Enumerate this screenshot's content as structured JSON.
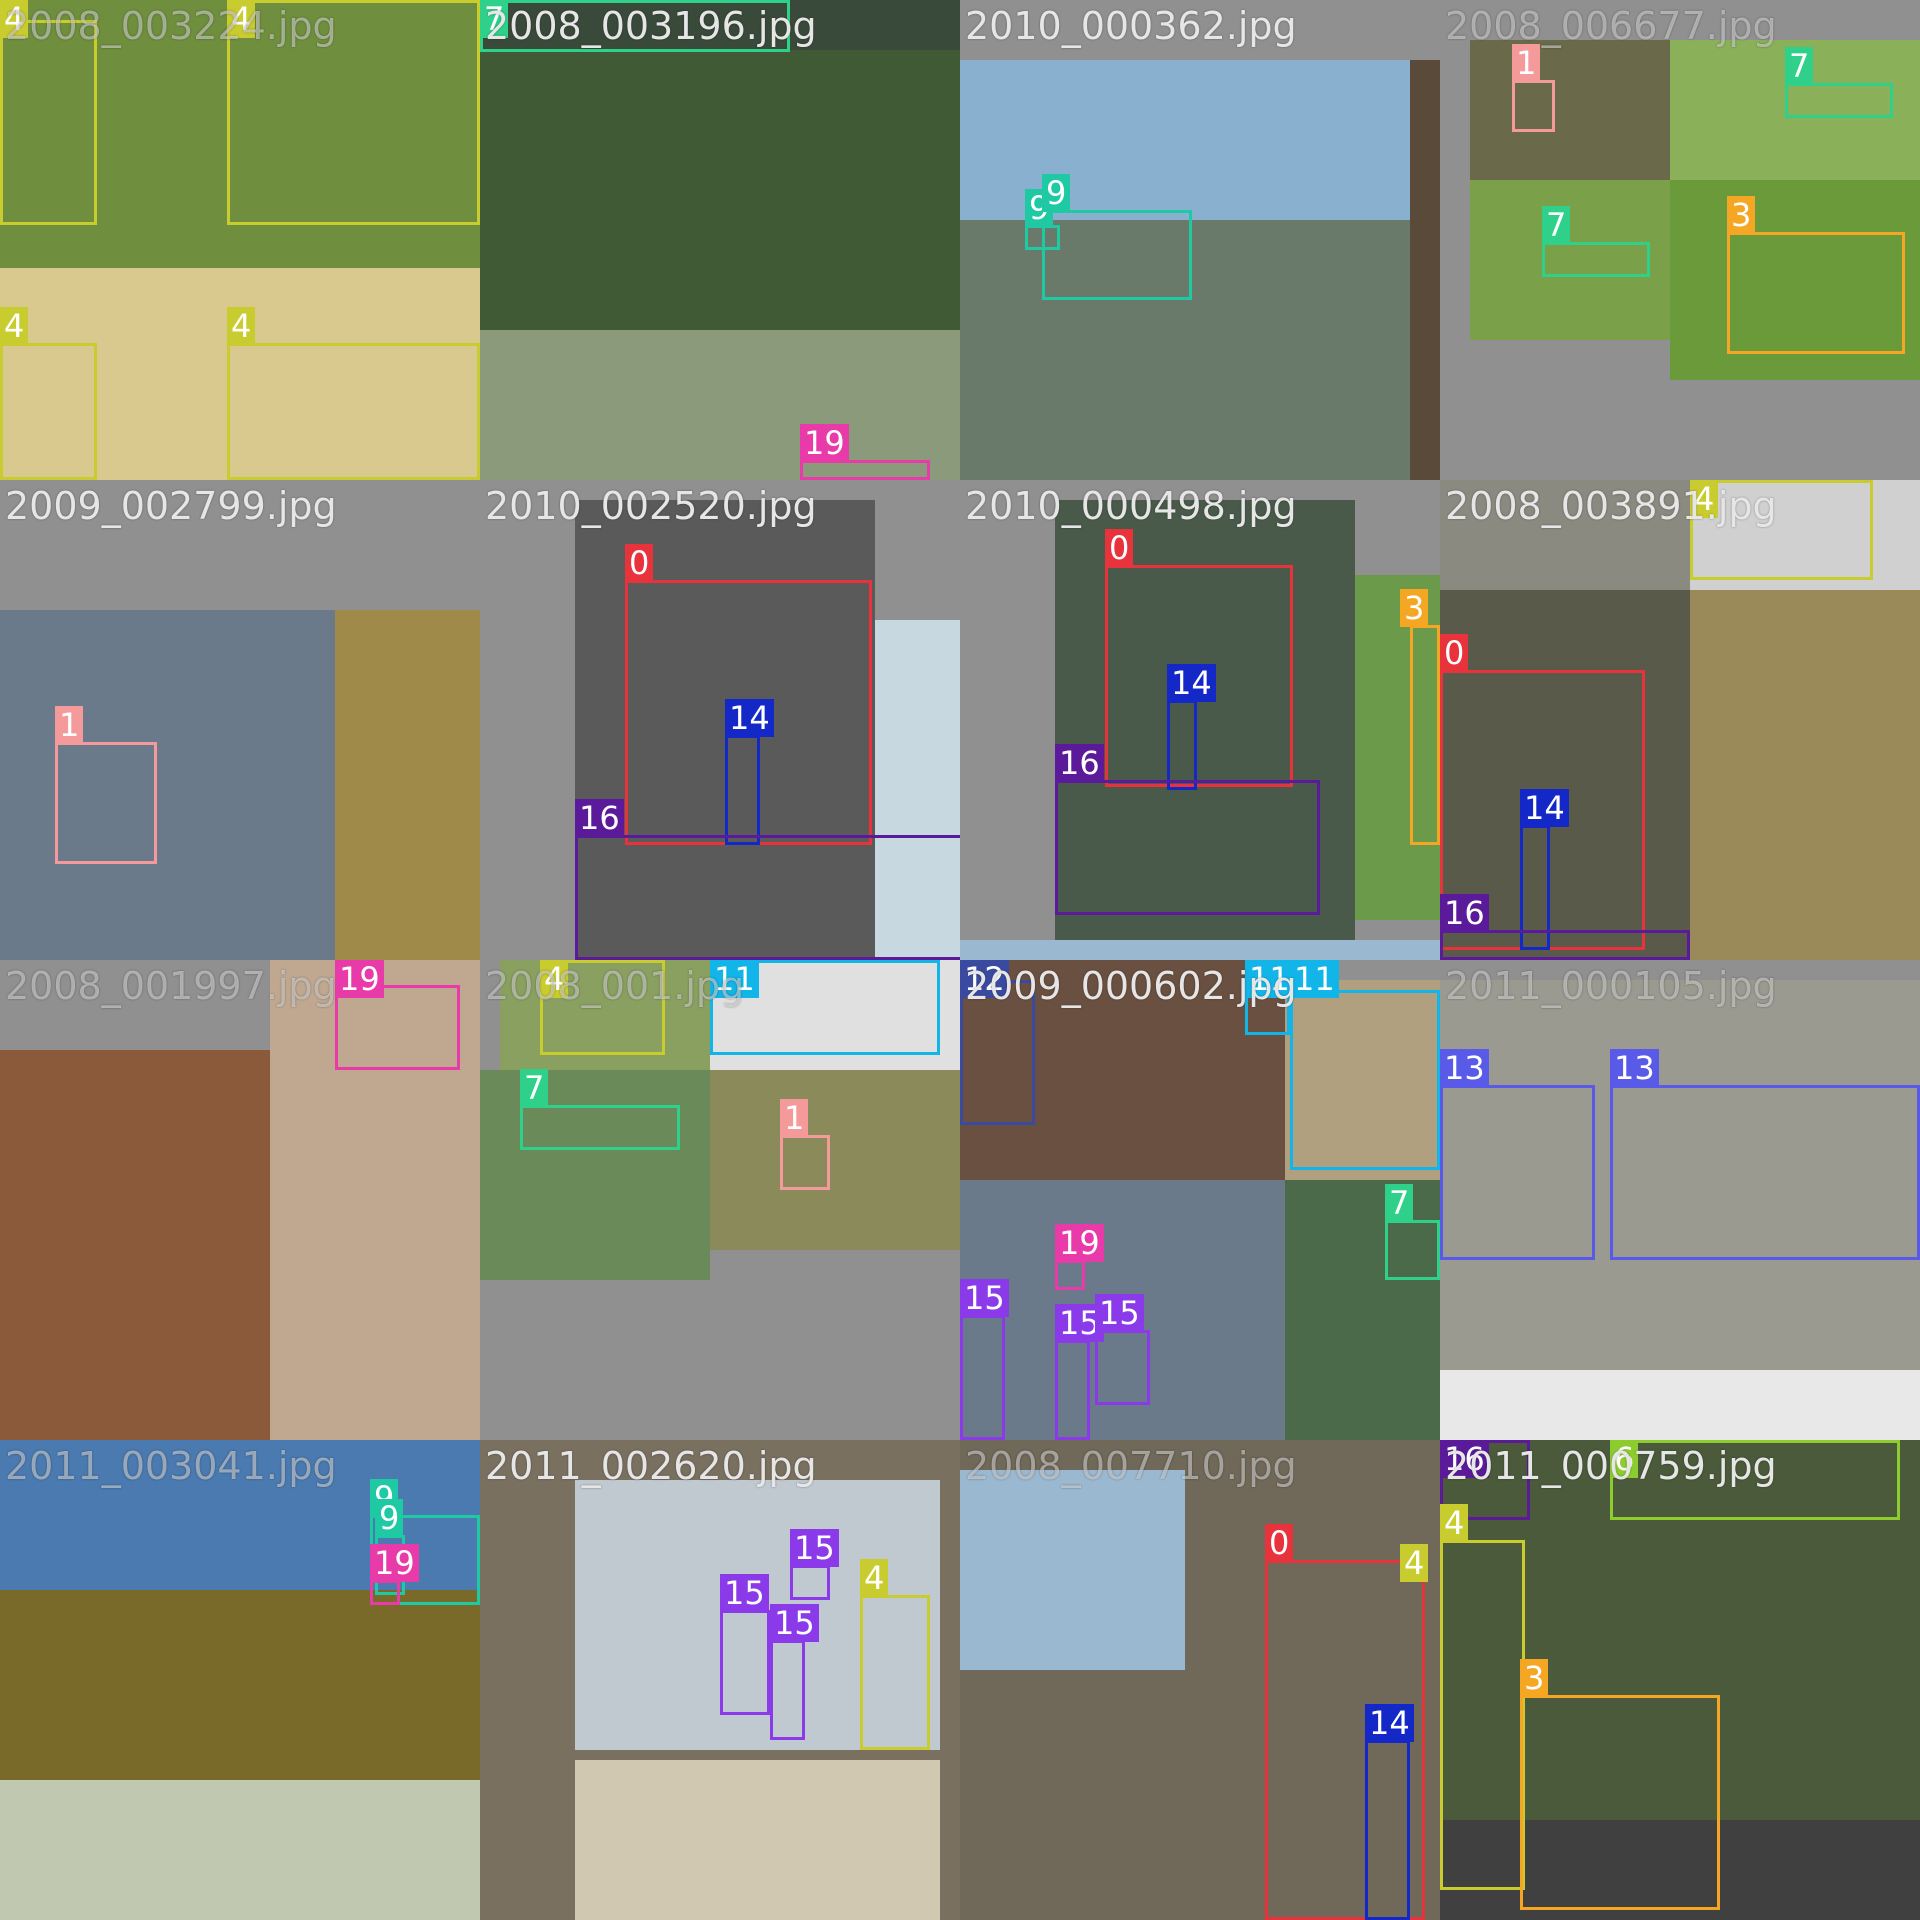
{
  "class_colors": {
    "0": "#e8323c",
    "1": "#f59a9a",
    "3": "#f5a623",
    "4": "#c9cc2e",
    "6": "#8ccc2e",
    "7": "#2ed08a",
    "9": "#1ec9a3",
    "11": "#12b5e8",
    "12": "#3a4aa0",
    "13": "#5a5ae8",
    "14": "#1428c8",
    "15": "#8a3ae8",
    "16": "#5a1a9a",
    "19": "#e83aa8"
  },
  "tiles": [
    {
      "filename": "2008_003224.jpg",
      "faint": true
    },
    {
      "filename": "2008_003196.jpg"
    },
    {
      "filename": "2010_000362.jpg"
    },
    {
      "filename": "2008_006677.jpg",
      "faint": true
    },
    {
      "filename": "2009_002799.jpg"
    },
    {
      "filename": "2010_002520.jpg"
    },
    {
      "filename": "2010_000498.jpg"
    },
    {
      "filename": "2008_003891.jpg"
    },
    {
      "filename": "2008_001997.jpg",
      "faint": true
    },
    {
      "filename": "2008_001.jpg",
      "faint": true
    },
    {
      "filename": "2009_000602.jpg"
    },
    {
      "filename": "2011_000105.jpg",
      "faint": true
    },
    {
      "filename": "2011_003041.jpg",
      "faint": true
    },
    {
      "filename": "2011_002620.jpg"
    },
    {
      "filename": "2008_007710.jpg",
      "faint": true
    },
    {
      "filename": "2011_000759.jpg"
    }
  ],
  "labels": [
    "4",
    "4",
    "4",
    "4",
    "7",
    "19",
    "9",
    "9",
    "1",
    "7",
    "7",
    "3",
    "1",
    "0",
    "14",
    "16",
    "0",
    "14",
    "16",
    "3",
    "4",
    "0",
    "14",
    "16",
    "19",
    "4",
    "11",
    "7",
    "1",
    "12",
    "11",
    "11",
    "7",
    "19",
    "15",
    "15",
    "15",
    "13",
    "13",
    "9",
    "9",
    "19",
    "15",
    "15",
    "15",
    "4",
    "0",
    "14",
    "4",
    "16",
    "6",
    "4",
    "3"
  ]
}
